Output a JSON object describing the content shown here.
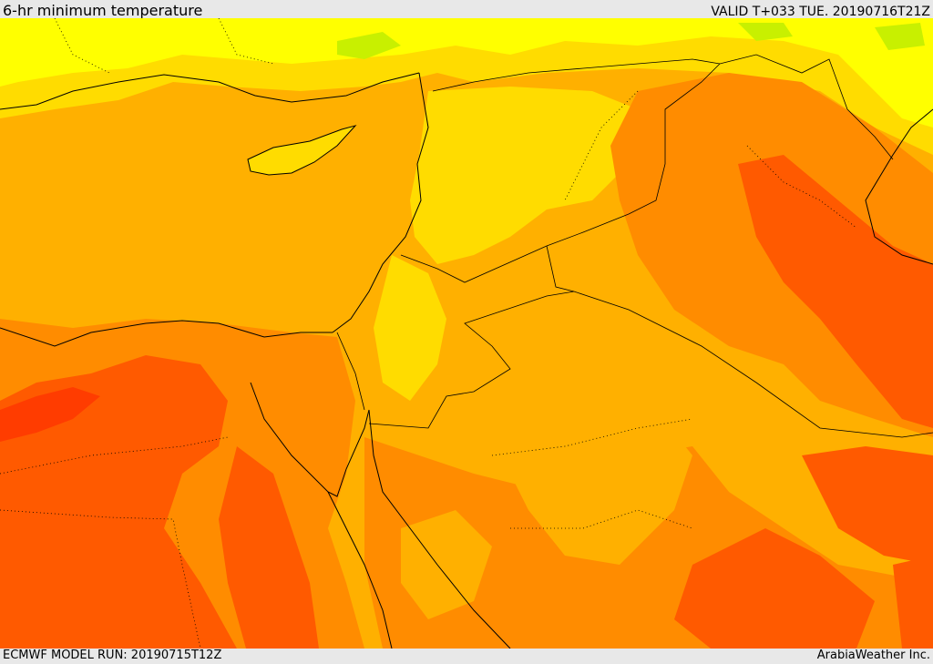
{
  "header": {
    "title": "6-hr minimum temperature",
    "valid_time": "VALID T+033 TUE. 20190716T21Z"
  },
  "footer": {
    "model_run": "ECMWF MODEL RUN: 20190715T12Z",
    "credit": "ArabiaWeather Inc."
  },
  "map": {
    "field": "minimum temperature",
    "colors": {
      "cool_green": "#c8f000",
      "yellow": "#ffff00",
      "light_yellow_orange": "#ffdc00",
      "orange_yellow": "#ffb000",
      "orange": "#ff8c00",
      "dark_orange": "#ff5a00",
      "red_orange": "#ff3c00",
      "border_line": "#000000"
    }
  }
}
